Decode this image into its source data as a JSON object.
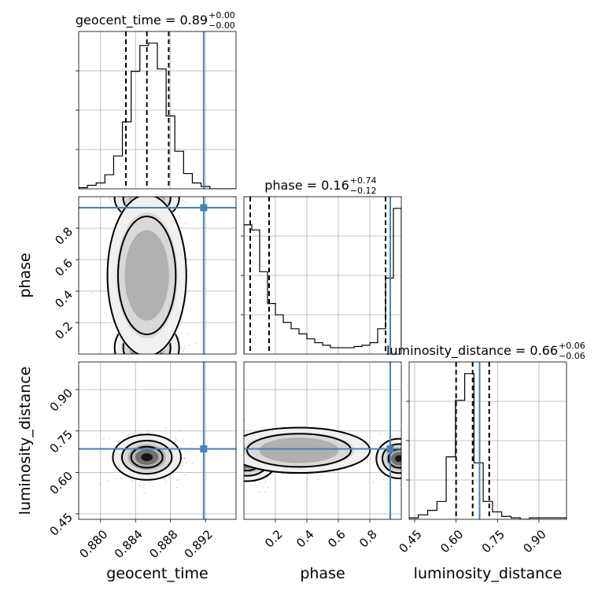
{
  "chart_data": {
    "type": "corner",
    "parameters": [
      "geocent_time",
      "phase",
      "luminosity_distance"
    ],
    "truth": {
      "geocent_time": 0.8918,
      "phase": 0.93,
      "luminosity_distance": 0.685
    },
    "titles": [
      {
        "param": "geocent_time",
        "text": "geocent_time = 0.89",
        "sup": "+0.00",
        "sub": "−0.00"
      },
      {
        "param": "phase",
        "text": "phase = 0.16",
        "sup": "+0.74",
        "sub": "−0.12"
      },
      {
        "param": "luminosity_distance",
        "text": "luminosity_distance = 0.66",
        "sup": "+0.06",
        "sub": "−0.06"
      }
    ],
    "axes": {
      "geocent_time": {
        "range": [
          0.8775,
          0.8955
        ],
        "ticks": [
          0.88,
          0.884,
          0.888,
          0.892
        ],
        "tick_labels": [
          "0.880",
          "0.884",
          "0.888",
          "0.892"
        ]
      },
      "phase": {
        "range": [
          0.0,
          1.0
        ],
        "ticks": [
          0.2,
          0.4,
          0.6,
          0.8
        ],
        "tick_labels": [
          "0.2",
          "0.4",
          "0.6",
          "0.8"
        ]
      },
      "luminosity_distance": {
        "range": [
          0.43,
          1.0
        ],
        "ticks": [
          0.45,
          0.6,
          0.75,
          0.9
        ],
        "tick_labels": [
          "0.45",
          "0.60",
          "0.75",
          "0.90"
        ]
      }
    },
    "marginals": [
      {
        "param": "geocent_time",
        "quantiles": [
          0.8829,
          0.8853,
          0.8878
        ],
        "bin_edges_range": [
          0.8775,
          0.8955
        ],
        "counts": [
          1,
          3,
          5,
          12,
          28,
          57,
          100,
          122,
          124,
          102,
          62,
          32,
          13,
          5,
          2,
          0,
          0,
          0
        ]
      },
      {
        "param": "phase",
        "quantiles": [
          0.04,
          0.16,
          0.9
        ],
        "bin_edges_range": [
          0.0,
          1.0
        ],
        "counts": [
          102,
          98,
          65,
          40,
          31,
          25,
          20,
          16,
          12,
          9,
          7,
          5,
          5,
          5,
          6,
          7,
          9,
          20,
          60,
          115
        ]
      },
      {
        "param": "luminosity_distance",
        "quantiles": [
          0.6,
          0.66,
          0.72
        ],
        "bin_edges_range": [
          0.43,
          1.0
        ],
        "counts": [
          1,
          3,
          6,
          12,
          42,
          80,
          98,
          38,
          12,
          5,
          2,
          1,
          0,
          1,
          1,
          1,
          1
        ]
      }
    ],
    "joint": [
      {
        "x": "geocent_time",
        "y": "phase"
      },
      {
        "x": "geocent_time",
        "y": "luminosity_distance"
      },
      {
        "x": "phase",
        "y": "luminosity_distance"
      }
    ],
    "axis_labels": {
      "x": [
        "geocent_time",
        "phase",
        "luminosity_distance"
      ],
      "y": [
        "phase",
        "luminosity_distance"
      ]
    },
    "colors": {
      "truth": "#4682b4",
      "hist": "#000000",
      "density": "#000000",
      "points": "#9a9a9a"
    },
    "grid": true
  }
}
